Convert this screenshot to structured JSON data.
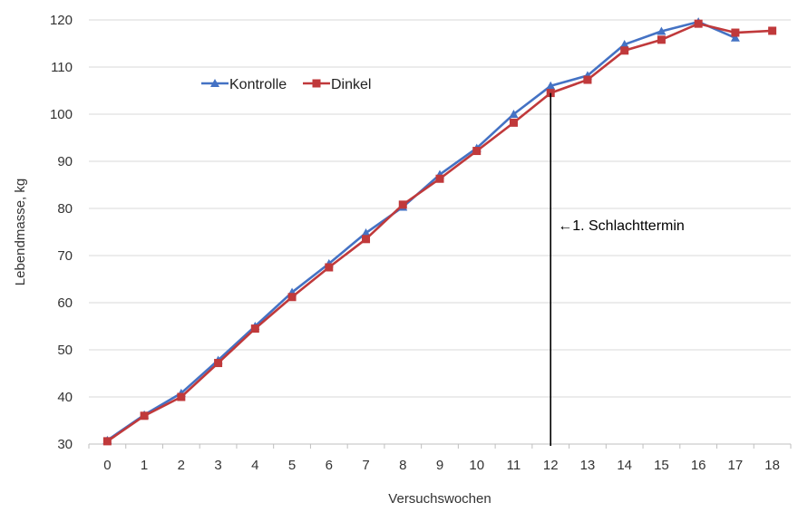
{
  "chart_data": {
    "type": "line",
    "xlabel": "Versuchswochen",
    "ylabel": "Lebendmasse, kg",
    "ylim": [
      30,
      120
    ],
    "yticks": [
      30,
      40,
      50,
      60,
      70,
      80,
      90,
      100,
      110,
      120
    ],
    "x": [
      0,
      1,
      2,
      3,
      4,
      5,
      6,
      7,
      8,
      9,
      10,
      11,
      12,
      13,
      14,
      15,
      16,
      17,
      18
    ],
    "grid": "horizontal",
    "legend": "top-left inside plot",
    "series": [
      {
        "name": "Kontrolle",
        "color": "#4472C4",
        "marker": "triangle",
        "values": [
          30.8,
          36.2,
          40.8,
          47.8,
          55.0,
          62.2,
          68.3,
          74.8,
          80.3,
          87.2,
          92.8,
          100.0,
          106.0,
          108.2,
          114.8,
          117.6,
          119.6,
          116.2,
          null
        ]
      },
      {
        "name": "Dinkel",
        "color": "#C0393B",
        "marker": "square",
        "values": [
          30.6,
          36.0,
          40.0,
          47.2,
          54.5,
          61.2,
          67.5,
          73.5,
          80.8,
          86.3,
          92.2,
          98.2,
          104.5,
          107.3,
          113.5,
          115.8,
          119.2,
          117.3,
          117.7
        ]
      }
    ],
    "annotation": {
      "text": "←1. Schlachttermin",
      "x": 12
    }
  }
}
